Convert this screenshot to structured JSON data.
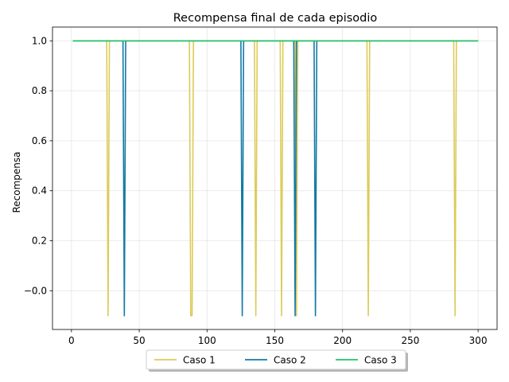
{
  "chart_data": {
    "type": "line",
    "title": "Recompensa final de cada episodio",
    "xlabel": "",
    "ylabel": "Recompensa",
    "xlim": [
      -14,
      314
    ],
    "ylim": [
      -0.155,
      1.055
    ],
    "xticks": [
      0,
      50,
      100,
      150,
      200,
      250,
      300
    ],
    "yticks": [
      -0.0,
      0.2,
      0.4,
      0.6,
      0.8,
      1.0
    ],
    "ytick_labels": [
      "−0.0",
      "0.2",
      "0.4",
      "0.6",
      "0.8",
      "1.0"
    ],
    "grid": true,
    "legend_position": "bottom-center outside",
    "x_range": [
      1,
      300
    ],
    "base_value": 1.0,
    "series": [
      {
        "name": "Caso 1",
        "color": "#dccb5a",
        "base": 1.0,
        "dips": [
          {
            "x": 27,
            "y": -0.1
          },
          {
            "x": 88,
            "y": -0.1
          },
          {
            "x": 89,
            "y": -0.1
          },
          {
            "x": 136,
            "y": -0.1
          },
          {
            "x": 155,
            "y": -0.1
          },
          {
            "x": 166,
            "y": -0.1
          },
          {
            "x": 219,
            "y": -0.1
          },
          {
            "x": 283,
            "y": -0.1
          }
        ]
      },
      {
        "name": "Caso 2",
        "color": "#1479a5",
        "base": 1.0,
        "dips": [
          {
            "x": 39,
            "y": -0.1
          },
          {
            "x": 126,
            "y": -0.1
          },
          {
            "x": 165,
            "y": -0.1
          },
          {
            "x": 180,
            "y": -0.1
          }
        ]
      },
      {
        "name": "Caso 3",
        "color": "#20c466",
        "base": 1.0,
        "dips": []
      }
    ]
  }
}
